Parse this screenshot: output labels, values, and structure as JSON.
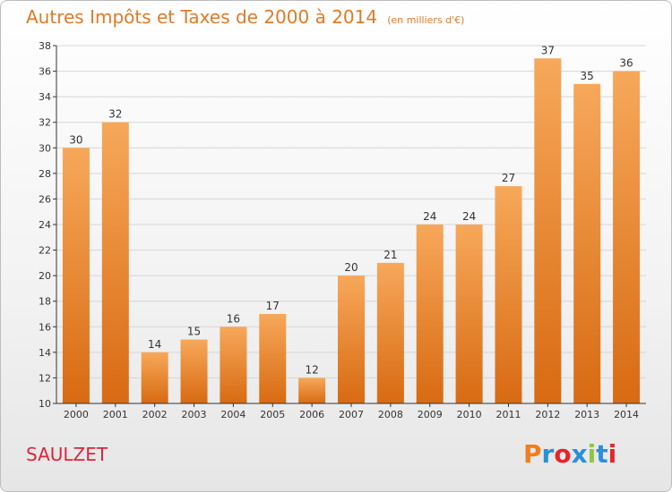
{
  "header": {
    "title": "Autres Impôts et Taxes de 2000 à 2014",
    "subtitle": "(en milliers d'€)"
  },
  "footer": {
    "commune": "SAULZET",
    "logo_text": "Proxiti",
    "logo_colors": [
      "#f07d1f",
      "#2b8fd6",
      "#e3262b",
      "#2b8fd6",
      "#8dc63f",
      "#2b8fd6",
      "#e3262b"
    ]
  },
  "colors": {
    "bar_light": "#f7a85a",
    "bar_dark": "#d86a12",
    "axis": "#333333",
    "grid": "#d6d6d6"
  },
  "chart_data": {
    "type": "bar",
    "categories": [
      "2000",
      "2001",
      "2002",
      "2003",
      "2004",
      "2005",
      "2006",
      "2007",
      "2008",
      "2009",
      "2010",
      "2011",
      "2012",
      "2013",
      "2014"
    ],
    "values": [
      30,
      32,
      14,
      15,
      16,
      17,
      12,
      20,
      21,
      24,
      24,
      27,
      37,
      35,
      36
    ],
    "ylim": [
      10,
      38
    ],
    "yticks": [
      10,
      12,
      14,
      16,
      18,
      20,
      22,
      24,
      26,
      28,
      30,
      32,
      34,
      36,
      38
    ],
    "grid": true,
    "xlabel": "",
    "ylabel": ""
  }
}
